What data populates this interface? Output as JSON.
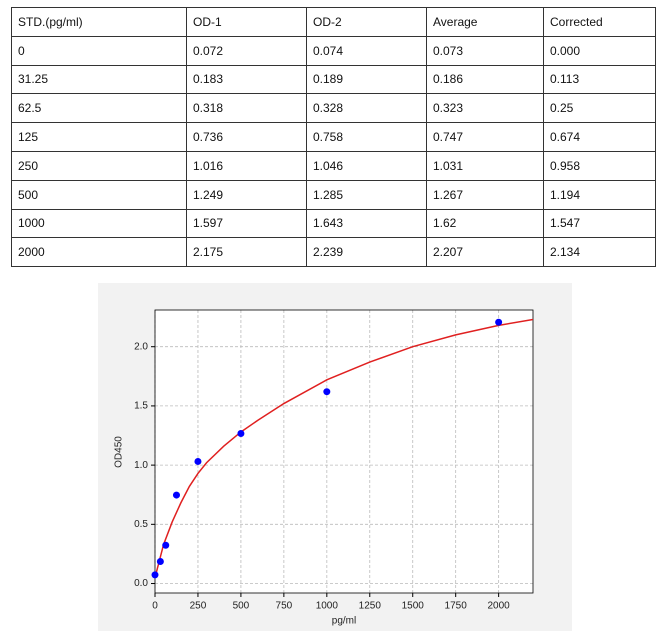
{
  "table": {
    "header": [
      "STD.(pg/ml)",
      "OD-1",
      "OD-2",
      "Average",
      "Corrected"
    ],
    "rows": [
      [
        "0",
        "0.072",
        "0.074",
        "0.073",
        "0.000"
      ],
      [
        "31.25",
        "0.183",
        "0.189",
        "0.186",
        "0.113"
      ],
      [
        "62.5",
        "0.318",
        "0.328",
        "0.323",
        "0.25"
      ],
      [
        "125",
        "0.736",
        "0.758",
        "0.747",
        "0.674"
      ],
      [
        "250",
        "1.016",
        "1.046",
        "1.031",
        "0.958"
      ],
      [
        "500",
        "1.249",
        "1.285",
        "1.267",
        "1.194"
      ],
      [
        "1000",
        "1.597",
        "1.643",
        "1.62",
        "1.547"
      ],
      [
        "2000",
        "2.175",
        "2.239",
        "2.207",
        "2.134"
      ]
    ]
  },
  "chart_data": {
    "type": "scatter",
    "x_label": "pg/ml",
    "y_label": "OD450",
    "xlim": [
      0,
      2200
    ],
    "ylim": [
      -0.08,
      2.31
    ],
    "xticks": [
      0,
      250,
      500,
      750,
      1000,
      1250,
      1500,
      1750,
      2000
    ],
    "yticks": [
      {
        "value": 0,
        "label": "0.0"
      },
      {
        "value": 0.5,
        "label": "0.5"
      },
      {
        "value": 1,
        "label": "1.0"
      },
      {
        "value": 1.5,
        "label": "1.5"
      },
      {
        "value": 2,
        "label": "2.0"
      }
    ],
    "grid": true,
    "series": [
      {
        "type": "scatter",
        "color": "#0000ff",
        "x": [
          0,
          31.25,
          62.5,
          125,
          250,
          500,
          1000,
          2000
        ],
        "values": [
          0.073,
          0.186,
          0.323,
          0.747,
          1.031,
          1.267,
          1.62,
          2.207
        ]
      },
      {
        "type": "line",
        "color": "#e02020",
        "x": [
          0,
          50,
          100,
          150,
          200,
          250,
          300,
          400,
          500,
          600,
          750,
          1000,
          1250,
          1500,
          1750,
          2000,
          2200
        ],
        "values": [
          0.05,
          0.33,
          0.52,
          0.68,
          0.82,
          0.93,
          1.02,
          1.16,
          1.28,
          1.38,
          1.52,
          1.72,
          1.87,
          2.0,
          2.1,
          2.18,
          2.23
        ]
      }
    ]
  }
}
